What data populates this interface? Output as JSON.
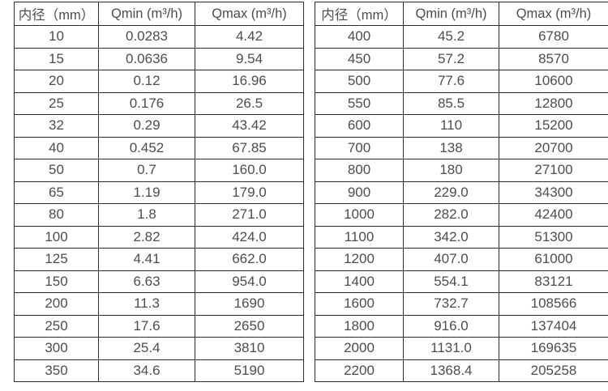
{
  "colors": {
    "background": "#ffffff",
    "text": "#4d4d4d",
    "border": "#2b2b2b"
  },
  "left_table": {
    "headers": [
      "内径（mm）",
      "Qmin (m³/h)",
      "Qmax (m³/h)"
    ],
    "rows": [
      [
        "10",
        "0.0283",
        "4.42"
      ],
      [
        "15",
        "0.0636",
        "9.54"
      ],
      [
        "20",
        "0.12",
        "16.96"
      ],
      [
        "25",
        "0.176",
        "26.5"
      ],
      [
        "32",
        "0.29",
        "43.42"
      ],
      [
        "40",
        "0.452",
        "67.85"
      ],
      [
        "50",
        "0.7",
        "160.0"
      ],
      [
        "65",
        "1.19",
        "179.0"
      ],
      [
        "80",
        "1.8",
        "271.0"
      ],
      [
        "100",
        "2.82",
        "424.0"
      ],
      [
        "125",
        "4.41",
        "662.0"
      ],
      [
        "150",
        "6.63",
        "954.0"
      ],
      [
        "200",
        "11.3",
        "1690"
      ],
      [
        "250",
        "17.6",
        "2650"
      ],
      [
        "300",
        "25.4",
        "3810"
      ],
      [
        "350",
        "34.6",
        "5190"
      ]
    ]
  },
  "right_table": {
    "headers": [
      "内径（mm）",
      "Qmin (m³/h)",
      "Qmax (m³/h)"
    ],
    "rows": [
      [
        "400",
        "45.2",
        "6780"
      ],
      [
        "450",
        "57.2",
        "8570"
      ],
      [
        "500",
        "77.6",
        "10600"
      ],
      [
        "550",
        "85.5",
        "12800"
      ],
      [
        "600",
        "110",
        "15200"
      ],
      [
        "700",
        "138",
        "20700"
      ],
      [
        "800",
        "180",
        "27100"
      ],
      [
        "900",
        "229.0",
        "34300"
      ],
      [
        "1000",
        "282.0",
        "42400"
      ],
      [
        "1100",
        "342.0",
        "51300"
      ],
      [
        "1200",
        "407.0",
        "61000"
      ],
      [
        "1400",
        "554.1",
        "83121"
      ],
      [
        "1600",
        "732.7",
        "108566"
      ],
      [
        "1800",
        "916.0",
        "137404"
      ],
      [
        "2000",
        "1131.0",
        "169635"
      ],
      [
        "2200",
        "1368.4",
        "205258"
      ]
    ]
  }
}
